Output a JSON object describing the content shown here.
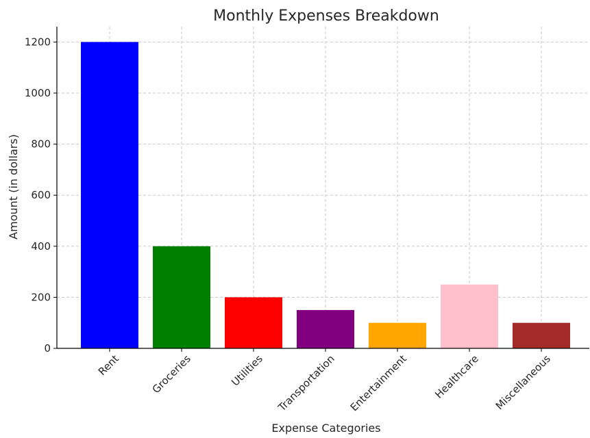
{
  "chart_data": {
    "type": "bar",
    "title": "Monthly Expenses Breakdown",
    "xlabel": "Expense Categories",
    "ylabel": "Amount (in dollars)",
    "categories": [
      "Rent",
      "Groceries",
      "Utilities",
      "Transportation",
      "Entertainment",
      "Healthcare",
      "Miscellaneous"
    ],
    "values": [
      1200,
      400,
      200,
      150,
      100,
      250,
      100
    ],
    "colors": [
      "#0000ff",
      "#008000",
      "#ff0000",
      "#800080",
      "#ffa500",
      "#ffc0cb",
      "#a52a2a"
    ],
    "ylim": [
      0,
      1260
    ],
    "yticks": [
      0,
      200,
      400,
      600,
      800,
      1000,
      1200
    ],
    "grid": true,
    "xtick_rotation": -45
  }
}
